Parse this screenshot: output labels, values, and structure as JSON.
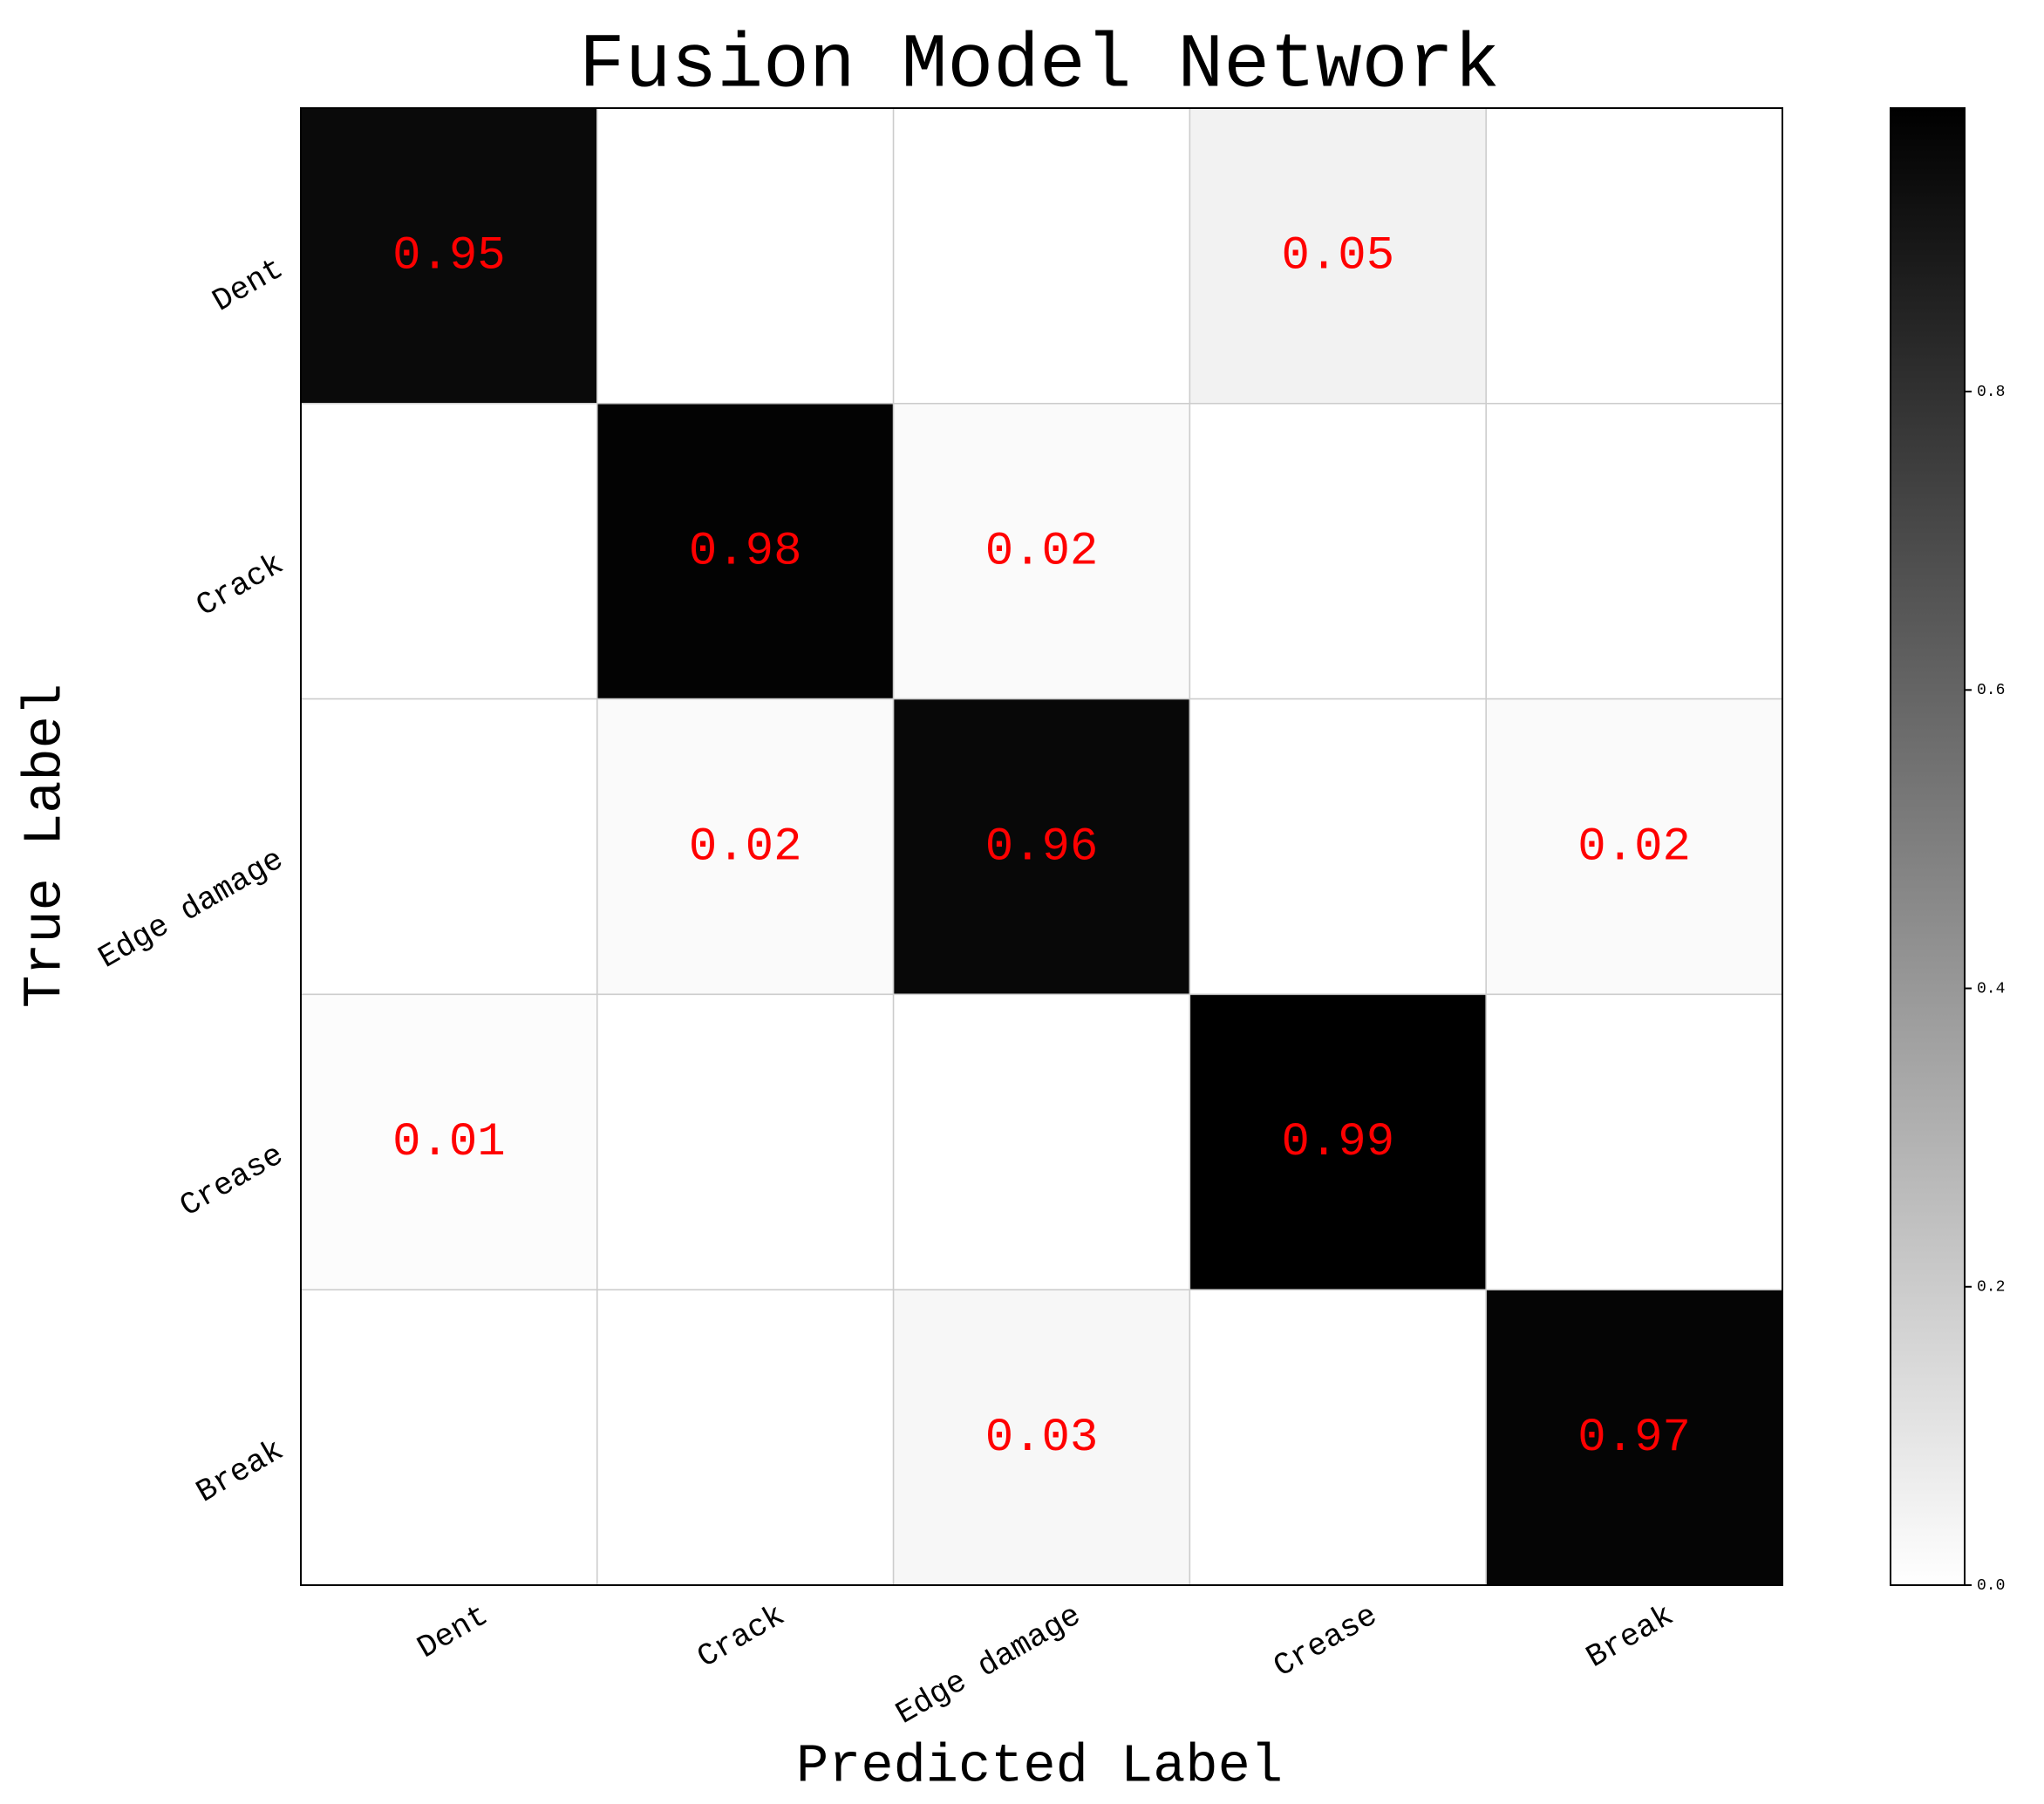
{
  "chart_data": {
    "type": "heatmap",
    "title": "Fusion Model Network",
    "xlabel": "Predicted Label",
    "ylabel": "True Label",
    "x_categories": [
      "Dent",
      "Crack",
      "Edge damage",
      "Crease",
      "Break"
    ],
    "y_categories": [
      "Dent",
      "Crack",
      "Edge damage",
      "Crease",
      "Break"
    ],
    "values": [
      [
        0.95,
        0,
        0,
        0.05,
        0
      ],
      [
        0,
        0.98,
        0.02,
        0,
        0
      ],
      [
        0,
        0.02,
        0.96,
        0,
        0.02
      ],
      [
        0.01,
        0,
        0,
        0.99,
        0
      ],
      [
        0,
        0,
        0.03,
        0,
        0.97
      ]
    ],
    "label_color": "#ff0000",
    "cmap": [
      "#ffffff",
      "#000000"
    ],
    "colorbar": {
      "lim": [
        0,
        0.99
      ],
      "ticks": [
        {
          "value": 0,
          "label": "0.0"
        },
        0.2,
        0.4,
        0.6,
        0.8
      ]
    }
  }
}
